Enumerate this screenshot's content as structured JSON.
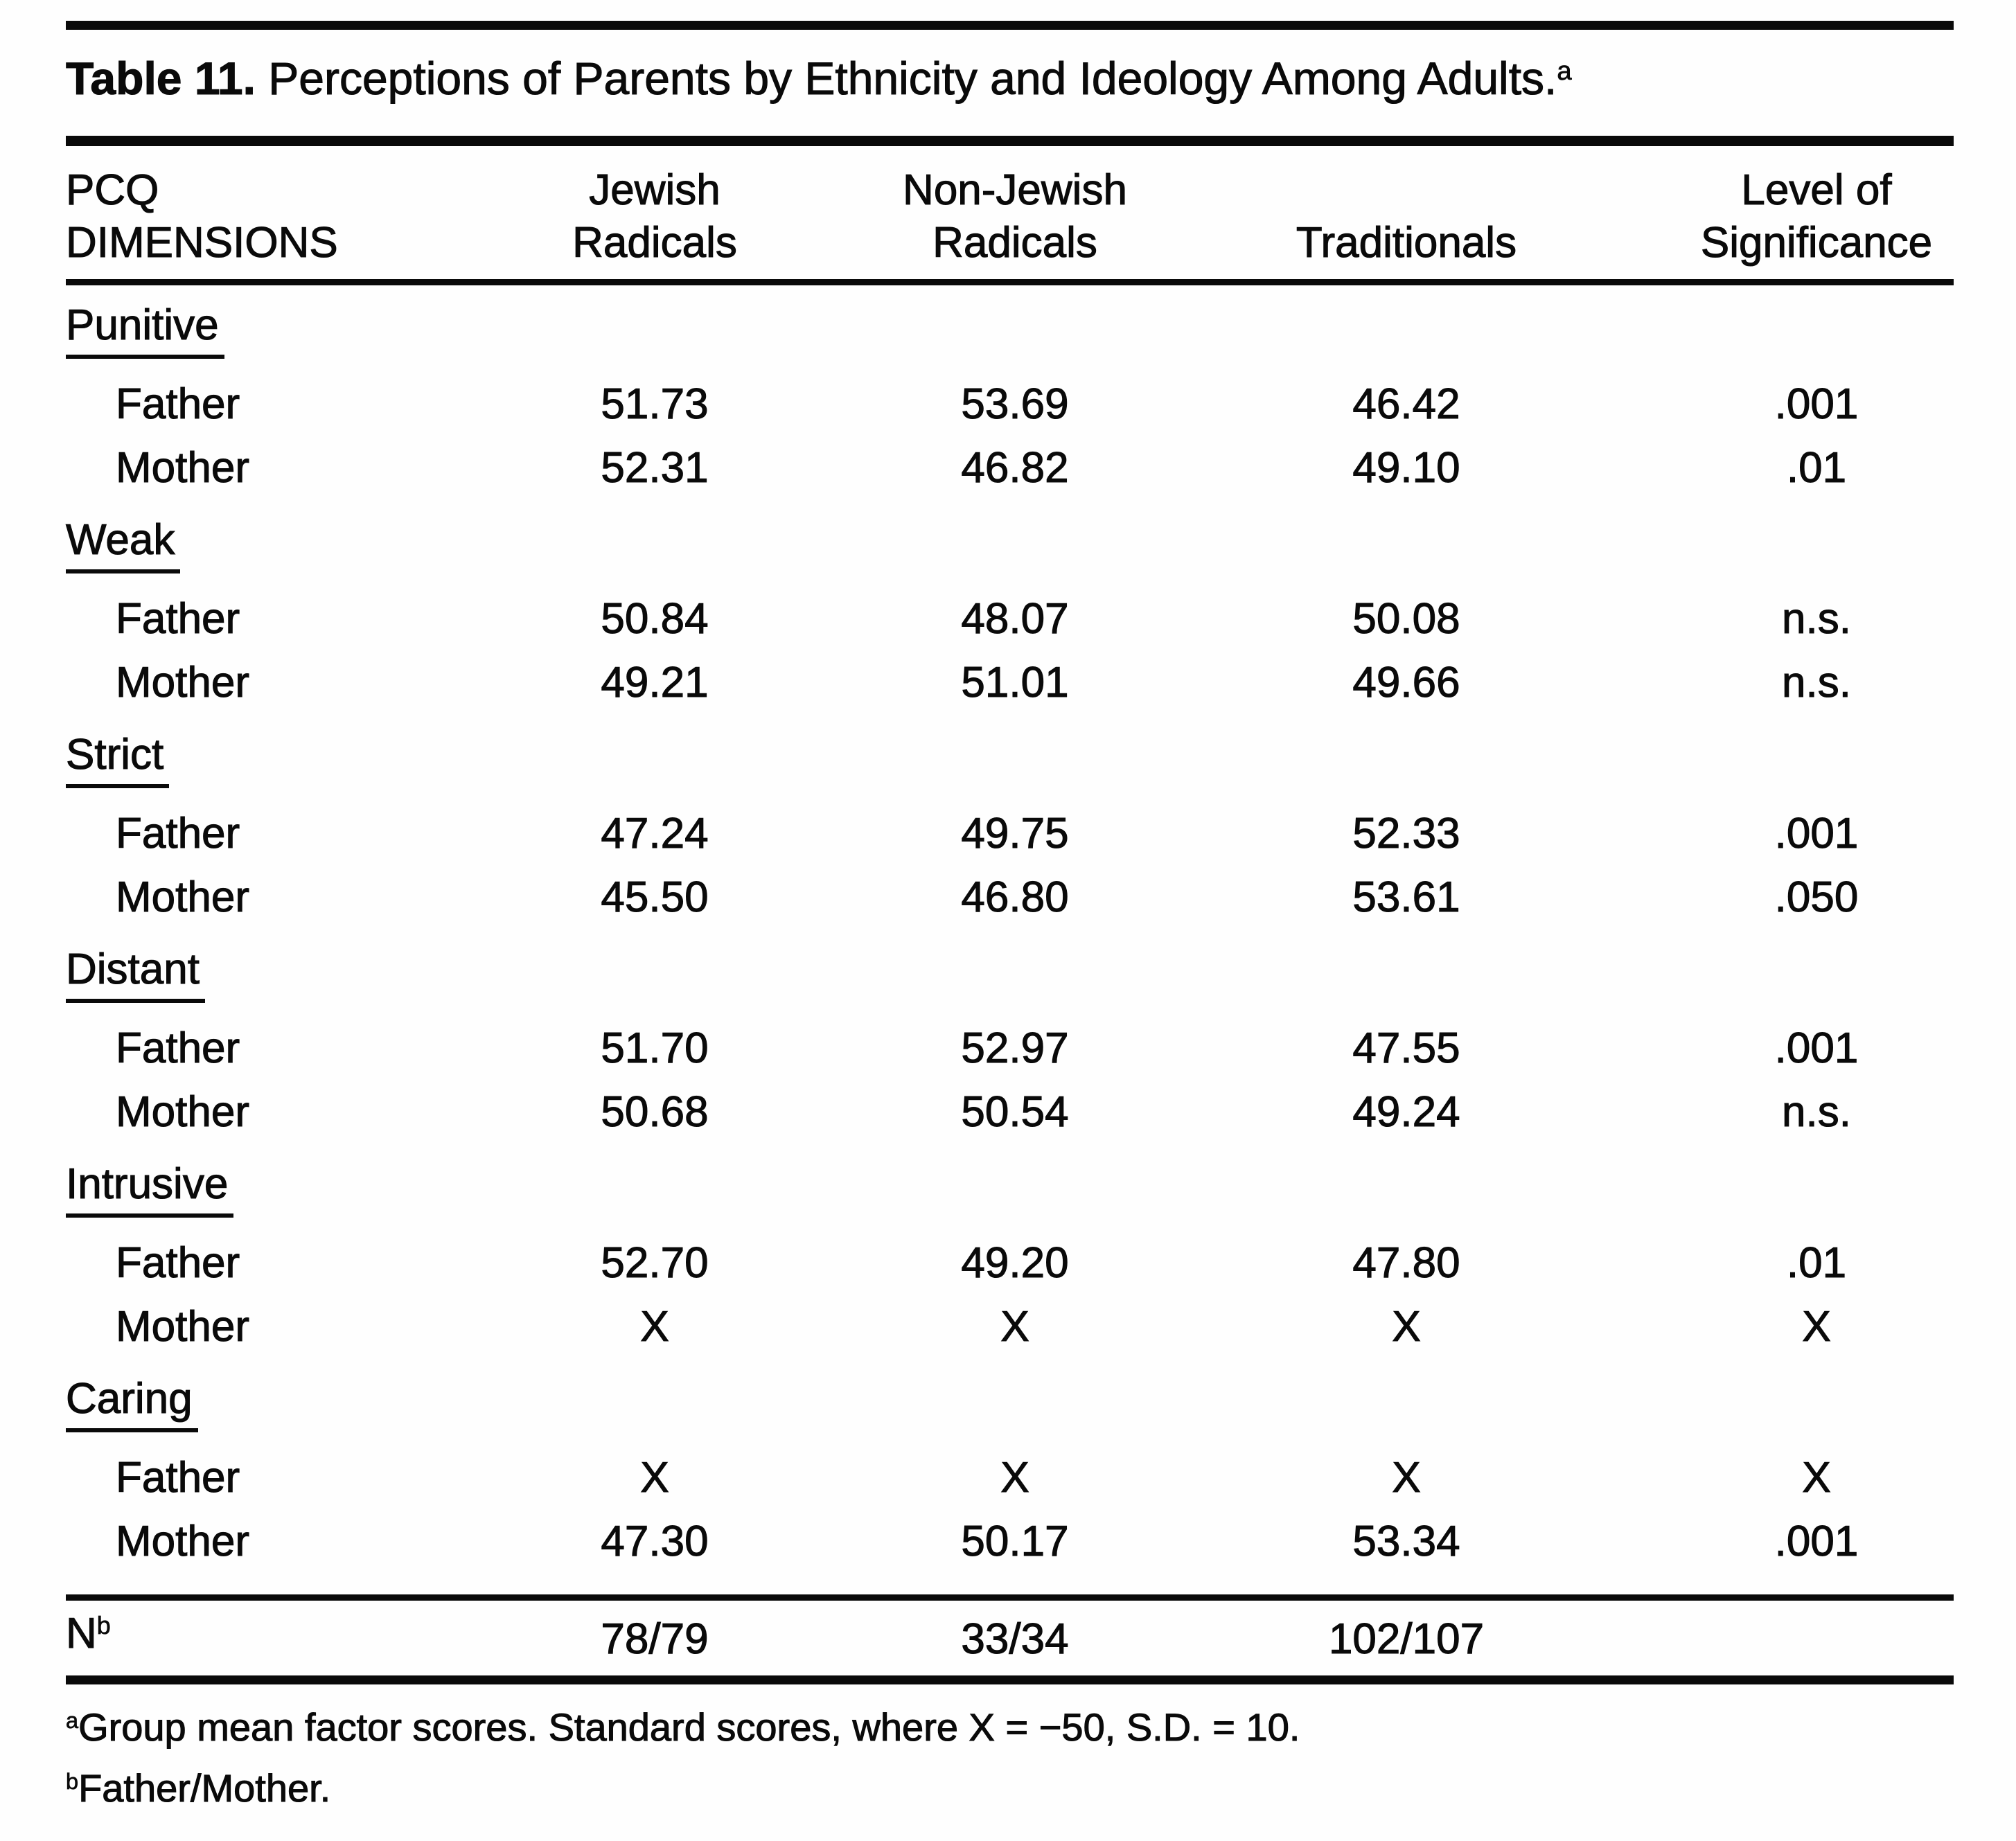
{
  "table": {
    "title": {
      "label": "Table 11.",
      "text": " Perceptions of Parents by Ethnicity and Ideology Among Adults.",
      "footnote_marker": "a"
    },
    "header": {
      "rows": [
        [
          "PCQ",
          "Jewish",
          "Non-Jewish",
          "",
          "Level of"
        ],
        [
          "DIMENSIONS",
          "Radicals",
          "Radicals",
          "Traditionals",
          "Significance"
        ]
      ]
    },
    "sections": [
      {
        "name": "Punitive",
        "rows": [
          {
            "label": "Father",
            "values": [
              "51.73",
              "53.69",
              "46.42",
              ".001"
            ]
          },
          {
            "label": "Mother",
            "values": [
              "52.31",
              "46.82",
              "49.10",
              ".01"
            ]
          }
        ]
      },
      {
        "name": "Weak",
        "rows": [
          {
            "label": "Father",
            "values": [
              "50.84",
              "48.07",
              "50.08",
              "n.s."
            ]
          },
          {
            "label": "Mother",
            "values": [
              "49.21",
              "51.01",
              "49.66",
              "n.s."
            ]
          }
        ]
      },
      {
        "name": "Strict",
        "rows": [
          {
            "label": "Father",
            "values": [
              "47.24",
              "49.75",
              "52.33",
              ".001"
            ]
          },
          {
            "label": "Mother",
            "values": [
              "45.50",
              "46.80",
              "53.61",
              ".050"
            ]
          }
        ]
      },
      {
        "name": "Distant",
        "rows": [
          {
            "label": "Father",
            "values": [
              "51.70",
              "52.97",
              "47.55",
              ".001"
            ]
          },
          {
            "label": "Mother",
            "values": [
              "50.68",
              "50.54",
              "49.24",
              "n.s."
            ]
          }
        ]
      },
      {
        "name": "Intrusive",
        "rows": [
          {
            "label": "Father",
            "values": [
              "52.70",
              "49.20",
              "47.80",
              ".01"
            ]
          },
          {
            "label": "Mother",
            "values": [
              "X",
              "X",
              "X",
              "X"
            ]
          }
        ]
      },
      {
        "name": "Caring",
        "rows": [
          {
            "label": "Father",
            "values": [
              "X",
              "X",
              "X",
              "X"
            ]
          },
          {
            "label": "Mother",
            "values": [
              "47.30",
              "50.17",
              "53.34",
              ".001"
            ]
          }
        ]
      }
    ],
    "n_row": {
      "label": "N",
      "footnote_marker": "b",
      "values": [
        "78/79",
        "33/34",
        "102/107",
        ""
      ]
    },
    "footnotes": [
      {
        "marker": "a",
        "text": "Group mean factor scores. Standard scores, where X = −50, S.D. = 10."
      },
      {
        "marker": "b",
        "text": "Father/Mother."
      }
    ]
  }
}
